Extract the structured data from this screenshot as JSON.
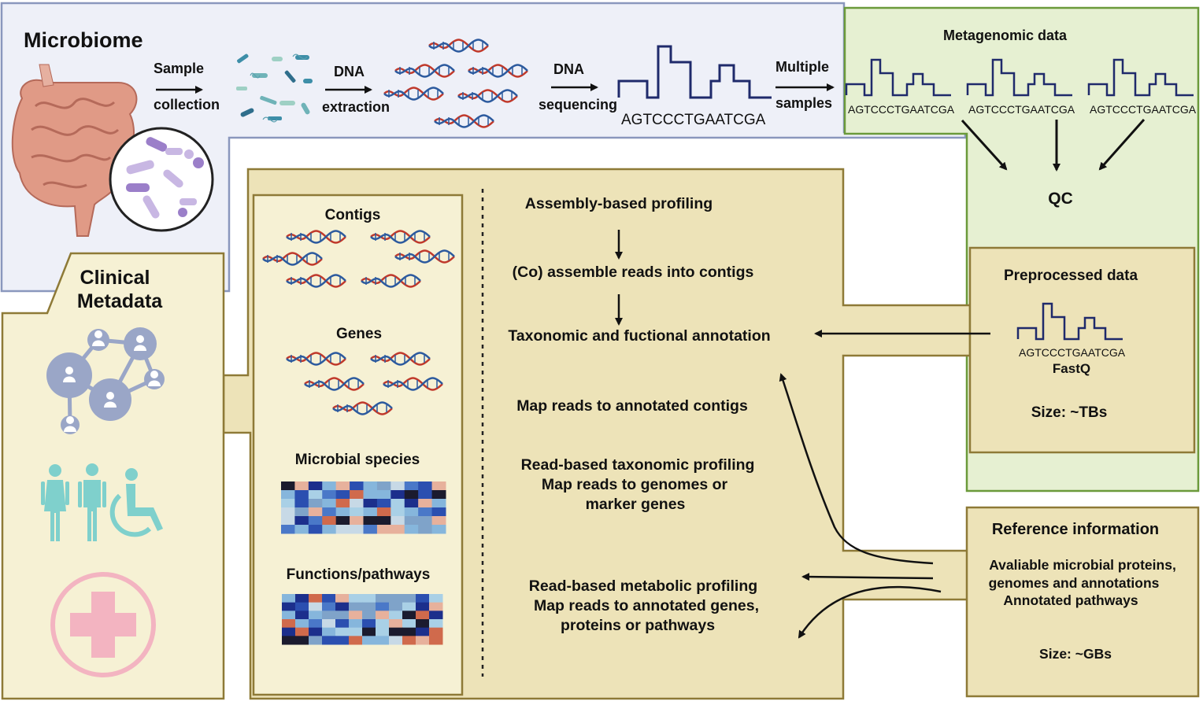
{
  "microbiome": {
    "title": "Microbiome",
    "sample_collection": [
      "Sample",
      "collection"
    ],
    "dna_extraction": [
      "DNA",
      "extraction"
    ],
    "dna_sequencing": [
      "DNA",
      "sequencing"
    ],
    "sequence": "AGTCCCTGAATCGA",
    "multiple_samples": [
      "Multiple",
      "samples"
    ]
  },
  "metagenomic": {
    "title": "Metagenomic data",
    "seq1": "AGTCCCTGAATCGA",
    "seq2": "AGTCCCTGAATCGA",
    "seq3": "AGTCCCTGAATCGA",
    "qc": "QC"
  },
  "preprocessed": {
    "title": "Preprocessed data",
    "sequence": "AGTCCCTGAATCGA",
    "format": "FastQ",
    "size": "Size: ~TBs"
  },
  "reference": {
    "title": "Reference information",
    "lines": [
      "Avaliable microbial proteins,",
      "genomes and annotations",
      "Annotated pathways"
    ],
    "size": "Size: ~GBs"
  },
  "clinical": {
    "title": [
      "Clinical",
      "Metadata"
    ],
    "icons": [
      "network-icon",
      "people-icon",
      "medical-cross-icon"
    ]
  },
  "outputs": {
    "contigs": "Contigs",
    "genes": "Genes",
    "species": "Microbial species",
    "functions": "Functions/pathways"
  },
  "steps": {
    "assembly": "Assembly-based profiling",
    "coassemble": "(Co) assemble reads into contigs",
    "annotation": "Taxonomic and fuctional annotation",
    "map_contigs": "Map reads to annotated contigs",
    "read_tax": [
      "Read-based taxonomic profiling",
      "Map reads to genomes or",
      "marker genes"
    ],
    "read_met": [
      "Read-based metabolic profiling",
      "Map reads to annotated genes,",
      "proteins or pathways"
    ]
  },
  "colors": {
    "border_blue": "#8a97bd",
    "panel_blue": "#eef0f8",
    "border_green": "#6b9a3a",
    "panel_green": "#e6f0d2",
    "border_gold": "#8e7a37",
    "panel_tan": "#ede3b8",
    "panel_cream": "#f6f1d4",
    "dna_red": "#c0392b",
    "dna_blue": "#2c5a9e",
    "seq_navy": "#1f2a6b"
  }
}
